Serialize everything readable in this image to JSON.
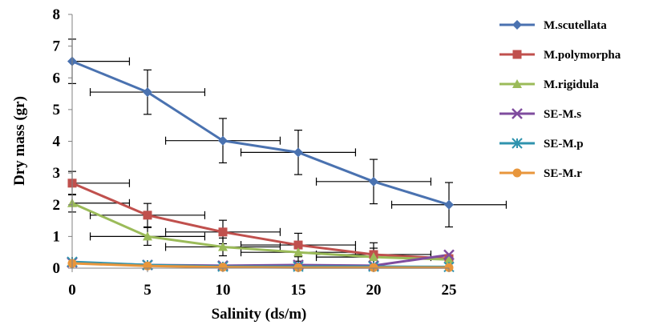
{
  "chart_data": {
    "type": "line",
    "title": "",
    "xlabel": "Salinity (ds/m)",
    "ylabel": "Dry mass (gr)",
    "x": [
      0,
      5,
      10,
      15,
      20,
      25
    ],
    "xlim": [
      0,
      25
    ],
    "ylim": [
      0,
      8
    ],
    "x_ticks": [
      "0",
      "5",
      "10",
      "15",
      "20",
      "25"
    ],
    "y_ticks": [
      "0",
      "1",
      "2",
      "3",
      "4",
      "5",
      "6",
      "7",
      "8"
    ],
    "grid": false,
    "legend_position": "right",
    "series": [
      {
        "name": "M.scutellata",
        "color": "#4A72B0",
        "marker": "diamond",
        "values": [
          6.52,
          5.55,
          4.02,
          3.65,
          2.73,
          2.0
        ],
        "y_err": [
          0.7,
          0.7,
          0.7,
          0.7,
          0.7,
          0.7
        ],
        "x_err": [
          3.8,
          3.8,
          3.8,
          3.8,
          3.8,
          3.8
        ]
      },
      {
        "name": "M.polymorpha",
        "color": "#C0504D",
        "marker": "square",
        "values": [
          2.68,
          1.67,
          1.14,
          0.73,
          0.43,
          0.3
        ],
        "y_err": [
          0.37,
          0.37,
          0.37,
          0.37,
          0.37,
          0.0
        ],
        "x_err": [
          3.8,
          3.8,
          3.8,
          3.8,
          3.8,
          0.0
        ]
      },
      {
        "name": "M.rigidula",
        "color": "#9BBB59",
        "marker": "triangle",
        "values": [
          2.05,
          1.0,
          0.67,
          0.5,
          0.35,
          0.27
        ],
        "y_err": [
          0.28,
          0.28,
          0.28,
          0.28,
          0.28,
          0.0
        ],
        "x_err": [
          3.8,
          3.8,
          3.8,
          3.8,
          3.8,
          0.0
        ]
      },
      {
        "name": "SE-M.s",
        "color": "#7F4C9E",
        "marker": "x",
        "values": [
          0.18,
          0.1,
          0.08,
          0.1,
          0.08,
          0.42
        ]
      },
      {
        "name": "SE-M.p",
        "color": "#2F93AE",
        "marker": "star",
        "values": [
          0.2,
          0.1,
          0.05,
          0.05,
          0.05,
          0.04
        ]
      },
      {
        "name": "SE-M.r",
        "color": "#E8963C",
        "marker": "circle",
        "values": [
          0.15,
          0.07,
          0.03,
          0.02,
          0.02,
          0.02
        ]
      }
    ]
  }
}
